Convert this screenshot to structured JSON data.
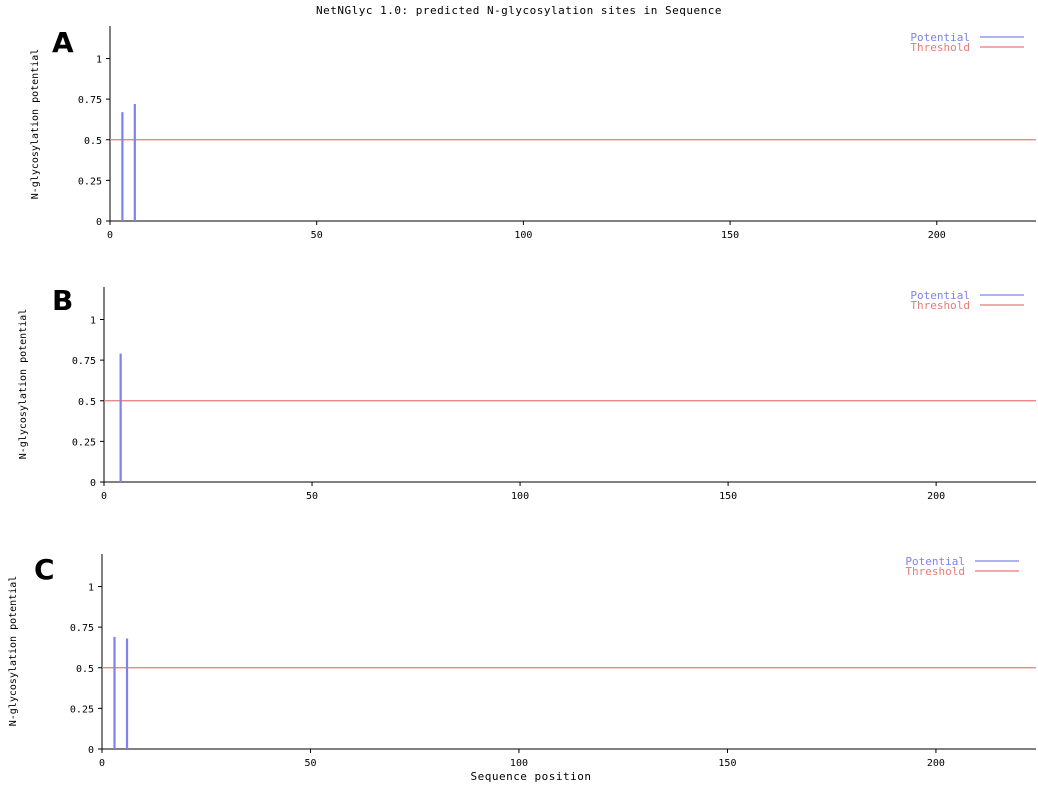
{
  "figure_title": "NetNGlyc 1.0: predicted N-glycosylation sites in Sequence",
  "colors": {
    "potential": "#8080ee",
    "threshold": "#e87a7a",
    "axis": "#000000"
  },
  "chart_data": [
    {
      "panel": "A",
      "type": "bar",
      "title": "NetNGlyc 1.0: predicted N-glycosylation sites in Sequence",
      "xlabel": "",
      "ylabel": "N-glycosylation potential",
      "xlim": [
        0,
        224
      ],
      "ylim": [
        0,
        1.2
      ],
      "xticks": [
        0,
        50,
        100,
        150,
        200
      ],
      "yticks": [
        0,
        0.25,
        0.5,
        0.75,
        1
      ],
      "ytick_labels": [
        "0",
        "0.25",
        "0.5",
        "0.75",
        "1"
      ],
      "series": [
        {
          "name": "Potential",
          "x": [
            3,
            6
          ],
          "values": [
            0.67,
            0.72
          ]
        }
      ],
      "threshold": {
        "name": "Threshold",
        "value": 0.5
      },
      "legend": "top-right"
    },
    {
      "panel": "B",
      "type": "bar",
      "title": "",
      "xlabel": "",
      "ylabel": "N-glycosylation potential",
      "xlim": [
        0,
        224
      ],
      "ylim": [
        0,
        1.2
      ],
      "xticks": [
        0,
        50,
        100,
        150,
        200
      ],
      "yticks": [
        0,
        0.25,
        0.5,
        0.75,
        1
      ],
      "ytick_labels": [
        "0",
        "0.25",
        "0.5",
        "0.75",
        "1"
      ],
      "series": [
        {
          "name": "Potential",
          "x": [
            4
          ],
          "values": [
            0.79
          ]
        }
      ],
      "threshold": {
        "name": "Threshold",
        "value": 0.5
      },
      "legend": "top-right"
    },
    {
      "panel": "C",
      "type": "bar",
      "title": "",
      "xlabel": "Sequence position",
      "ylabel": "N-glycosylation potential",
      "xlim": [
        0,
        224
      ],
      "ylim": [
        0,
        1.2
      ],
      "xticks": [
        0,
        50,
        100,
        150,
        200
      ],
      "yticks": [
        0,
        0.25,
        0.5,
        0.75,
        1
      ],
      "ytick_labels": [
        "0",
        "0.25",
        "0.5",
        "0.75",
        "1"
      ],
      "series": [
        {
          "name": "Potential",
          "x": [
            3,
            6
          ],
          "values": [
            0.69,
            0.68
          ]
        }
      ],
      "threshold": {
        "name": "Threshold",
        "value": 0.5
      },
      "legend": "top-right"
    }
  ]
}
